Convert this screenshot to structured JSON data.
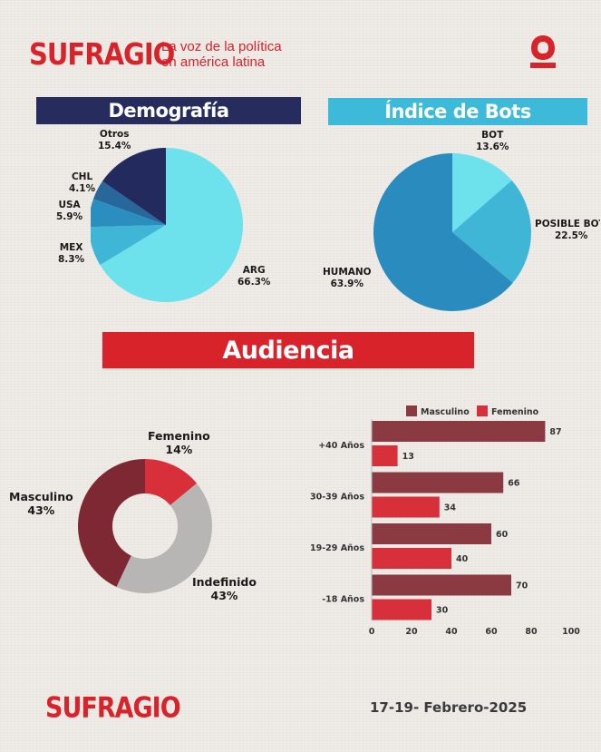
{
  "header": {
    "brand": "SUFRAGIO",
    "tagline_line1": "La voz de la política",
    "tagline_line2": "en américa latina",
    "logo_mark": "sufragio-o-logo-icon"
  },
  "colors": {
    "brand_red": "#d8232a",
    "navy": "#262d5e",
    "cyan": "#3db9d9"
  },
  "sections": {
    "demografia": "Demografía",
    "bots": "Índice de Bots",
    "audiencia": "Audiencia"
  },
  "chart_data": [
    {
      "type": "pie",
      "title": "Demografía",
      "slices": [
        {
          "label": "ARG",
          "value": 66.3,
          "display": "66.3%",
          "color": "#6de2ec"
        },
        {
          "label": "MEX",
          "value": 8.3,
          "display": "8.3%",
          "color": "#40b6d6"
        },
        {
          "label": "USA",
          "value": 5.9,
          "display": "5.9%",
          "color": "#2a8fbf"
        },
        {
          "label": "CHL",
          "value": 4.1,
          "display": "4.1%",
          "color": "#28679b"
        },
        {
          "label": "Otros",
          "value": 15.4,
          "display": "15.4%",
          "color": "#232a5e"
        }
      ]
    },
    {
      "type": "pie",
      "title": "Índice de Bots",
      "slices": [
        {
          "label": "BOT",
          "value": 13.6,
          "display": "13.6%",
          "color": "#6de2ec"
        },
        {
          "label": "POSIBLE BOT",
          "value": 22.5,
          "display": "22.5%",
          "color": "#40b6d6"
        },
        {
          "label": "HUMANO",
          "value": 63.9,
          "display": "63.9%",
          "color": "#2a8bbf"
        }
      ]
    },
    {
      "type": "pie",
      "subtype": "donut",
      "slices": [
        {
          "label": "Femenino",
          "value": 14,
          "display": "14%",
          "color": "#d7303a"
        },
        {
          "label": "Indefinido",
          "value": 43,
          "display": "43%",
          "color": "#b8b6b4"
        },
        {
          "label": "Masculino",
          "value": 43,
          "display": "43%",
          "color": "#7d2833"
        }
      ]
    },
    {
      "type": "bar",
      "orientation": "horizontal",
      "categories": [
        "+40 Años",
        "30-39 Años",
        "19-29 Años",
        "-18 Años"
      ],
      "series": [
        {
          "name": "Masculino",
          "values": [
            87,
            66,
            60,
            70
          ],
          "color": "#8b3a42"
        },
        {
          "name": "Femenino",
          "values": [
            13,
            34,
            40,
            30
          ],
          "color": "#d7303a"
        }
      ],
      "xlim": [
        0,
        100
      ],
      "xticks": [
        0,
        20,
        40,
        60,
        80,
        100
      ],
      "legend": "top",
      "grid": false
    }
  ],
  "footer": {
    "brand": "SUFRAGIO",
    "date": "17-19- Febrero-2025"
  }
}
